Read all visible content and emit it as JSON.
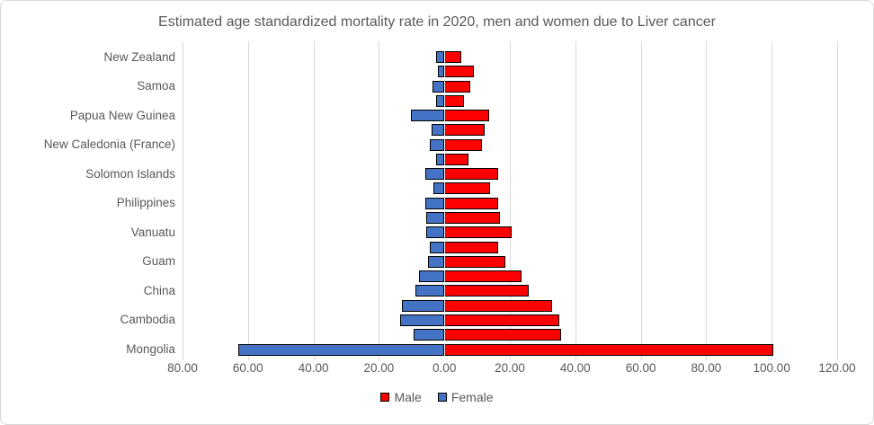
{
  "chart_data": {
    "type": "bar",
    "variant": "tornado-horizontal",
    "title": "Estimated age standardized mortality rate in 2020, men and women due to Liver cancer",
    "xlabel": "",
    "ylabel": "",
    "axis": {
      "xmin": -80,
      "xmax": 120,
      "tick_step": 20,
      "tick_labels": [
        "80.00",
        "60.00",
        "40.00",
        "20.00",
        "0.00",
        "20.00",
        "40.00",
        "60.00",
        "80.00",
        "100.00",
        "120.00"
      ],
      "grid": true,
      "zero_line_over_bars": true
    },
    "legend": {
      "position": "bottom",
      "items": [
        {
          "name": "Male",
          "color": "#FF0000"
        },
        {
          "name": "Female",
          "color": "#4472C4"
        }
      ]
    },
    "style": {
      "bar_border_color": "#000000",
      "gridline_color": "#D9D9D9",
      "text_color": "#595959"
    },
    "categories": [
      "New Zealand",
      "",
      "Samoa",
      "",
      "Papua New Guinea",
      "",
      "New Caledonia (France)",
      "",
      "Solomon Islands",
      "",
      "Philippines",
      "",
      "Vanuatu",
      "",
      "Guam",
      "",
      "China",
      "",
      "Cambodia",
      "",
      "Mongolia"
    ],
    "series": [
      {
        "name": "Male",
        "direction": "right",
        "color": "#FF0000",
        "values": [
          5.3,
          9.0,
          7.9,
          6.0,
          13.6,
          12.2,
          11.5,
          7.4,
          16.4,
          14.0,
          16.5,
          17.0,
          20.6,
          16.3,
          18.7,
          23.6,
          25.7,
          33.0,
          35.2,
          35.7,
          100.6
        ]
      },
      {
        "name": "Female",
        "direction": "left",
        "color": "#4472C4",
        "values": [
          2.4,
          2.1,
          3.7,
          2.4,
          10.1,
          3.9,
          4.4,
          2.6,
          5.8,
          3.3,
          5.8,
          5.6,
          5.6,
          4.5,
          5.1,
          7.7,
          8.8,
          13.1,
          13.6,
          9.5,
          63.0
        ]
      }
    ]
  }
}
